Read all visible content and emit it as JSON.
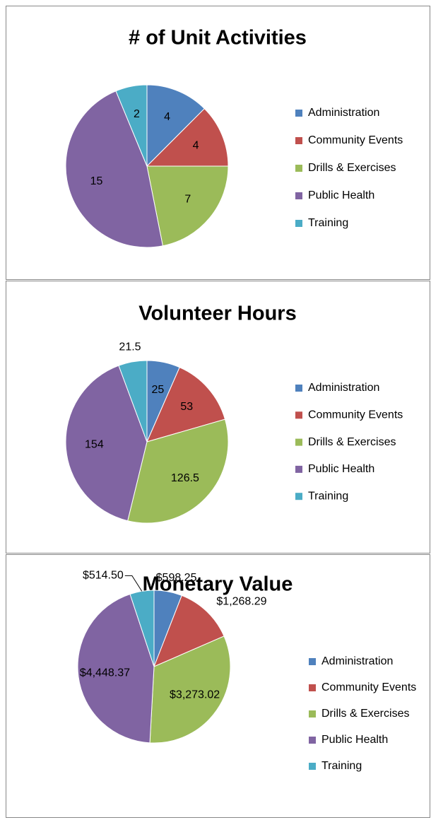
{
  "chart_data": [
    {
      "type": "pie",
      "title": "# of Unit Activities",
      "categories": [
        "Administration",
        "Community Events",
        "Drills & Exercises",
        "Public Health",
        "Training"
      ],
      "values": [
        4,
        4,
        7,
        15,
        2
      ],
      "colors": [
        "#4f81bd",
        "#c0504d",
        "#9bbb59",
        "#8064a2",
        "#4bacc6"
      ],
      "legend": "right"
    },
    {
      "type": "pie",
      "title": "Volunteer Hours",
      "categories": [
        "Administration",
        "Community Events",
        "Drills & Exercises",
        "Public Health",
        "Training"
      ],
      "values": [
        25,
        53,
        126.5,
        154,
        21.5
      ],
      "colors": [
        "#4f81bd",
        "#c0504d",
        "#9bbb59",
        "#8064a2",
        "#4bacc6"
      ],
      "legend": "right"
    },
    {
      "type": "pie",
      "title": "Monetary Value",
      "categories": [
        "Administration",
        "Community Events",
        "Drills & Exercises",
        "Public Health",
        "Training"
      ],
      "values": [
        598.25,
        1268.29,
        3273.02,
        4448.37,
        514.5
      ],
      "value_labels": [
        "$598.25",
        "$1,268.29",
        "$3,273.02",
        "$4,448.37",
        "$514.50"
      ],
      "colors": [
        "#4f81bd",
        "#c0504d",
        "#9bbb59",
        "#8064a2",
        "#4bacc6"
      ],
      "legend": "right"
    }
  ]
}
